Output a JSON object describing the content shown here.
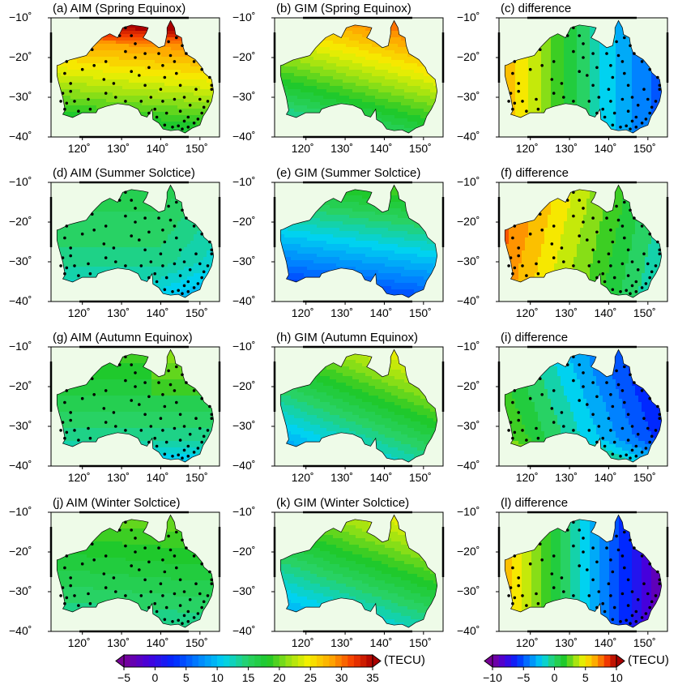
{
  "figure": {
    "panels": [
      {
        "title": "(a) AIM (Spring Equinox)",
        "field": "aim",
        "season": "spring",
        "stations": true
      },
      {
        "title": "(b) GIM (Spring Equinox)",
        "field": "gim",
        "season": "spring",
        "stations": false
      },
      {
        "title": "(c) difference",
        "field": "diff",
        "season": "spring",
        "stations": true
      },
      {
        "title": "(d) AIM (Summer Solctice)",
        "field": "aim",
        "season": "summer",
        "stations": true
      },
      {
        "title": "(e) GIM (Summer Solctice)",
        "field": "gim",
        "season": "summer",
        "stations": false
      },
      {
        "title": "(f) difference",
        "field": "diff",
        "season": "summer",
        "stations": true
      },
      {
        "title": "(g) AIM (Autumn Equinox)",
        "field": "aim",
        "season": "autumn",
        "stations": true
      },
      {
        "title": "(h) GIM (Autumn Equinox)",
        "field": "gim",
        "season": "autumn",
        "stations": false
      },
      {
        "title": "(i) difference",
        "field": "diff",
        "season": "autumn",
        "stations": true
      },
      {
        "title": "(j) AIM (Winter Solctice)",
        "field": "aim",
        "season": "winter",
        "stations": true
      },
      {
        "title": "(k) GIM (Winter Solctice)",
        "field": "gim",
        "season": "winter",
        "stations": false
      },
      {
        "title": "(l) difference",
        "field": "diff",
        "season": "winter",
        "stations": true
      }
    ],
    "lat_ticks": [
      "−10˚",
      "−20˚",
      "−30˚",
      "−40˚"
    ],
    "lon_ticks": [
      "120˚",
      "130˚",
      "140˚",
      "150˚"
    ],
    "colors": {
      "land_background": "#eefbe8",
      "coastline": "#000000",
      "station_dot": "#000000"
    },
    "colorbars": [
      {
        "name": "tec",
        "unit": "(TECU)",
        "ticks": [
          "−5",
          "0",
          "5",
          "10",
          "15",
          "20",
          "25",
          "30",
          "35"
        ],
        "min": -5,
        "max": 35
      },
      {
        "name": "difference",
        "unit": "(TECU)",
        "ticks": [
          "−10",
          "−5",
          "0",
          "5",
          "10"
        ],
        "min": -10,
        "max": 10
      }
    ]
  }
}
